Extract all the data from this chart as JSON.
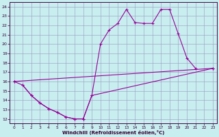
{
  "xlabel": "Windchill (Refroidissement éolien,°C)",
  "xlim": [
    -0.5,
    23.5
  ],
  "ylim": [
    11.5,
    24.5
  ],
  "xticks": [
    0,
    1,
    2,
    3,
    4,
    5,
    6,
    7,
    8,
    9,
    10,
    11,
    12,
    13,
    14,
    15,
    16,
    17,
    18,
    19,
    20,
    21,
    22,
    23
  ],
  "yticks": [
    12,
    13,
    14,
    15,
    16,
    17,
    18,
    19,
    20,
    21,
    22,
    23,
    24
  ],
  "bg_color": "#c8eef0",
  "grid_color": "#9999bb",
  "line_color": "#990099",
  "lw": 0.8,
  "marker": "+",
  "ms": 3,
  "mew": 0.8,
  "line1_x": [
    0,
    1,
    2,
    3,
    4,
    5,
    6,
    7,
    8,
    9,
    10,
    11,
    12,
    13,
    14,
    15,
    16,
    17,
    18,
    19,
    20,
    21
  ],
  "line1_y": [
    16.0,
    15.6,
    14.5,
    13.7,
    13.1,
    12.7,
    12.2,
    12.0,
    12.0,
    14.5,
    20.0,
    21.5,
    22.2,
    23.7,
    22.3,
    22.2,
    22.2,
    23.7,
    23.7,
    21.1,
    18.5,
    17.4
  ],
  "line2_x": [
    0,
    23
  ],
  "line2_y": [
    16.0,
    17.4
  ],
  "line3_x": [
    1,
    2,
    3,
    4,
    5,
    6,
    7,
    8,
    9,
    23
  ],
  "line3_y": [
    15.6,
    14.5,
    13.7,
    13.1,
    12.7,
    12.2,
    12.0,
    12.0,
    14.5,
    17.4
  ]
}
